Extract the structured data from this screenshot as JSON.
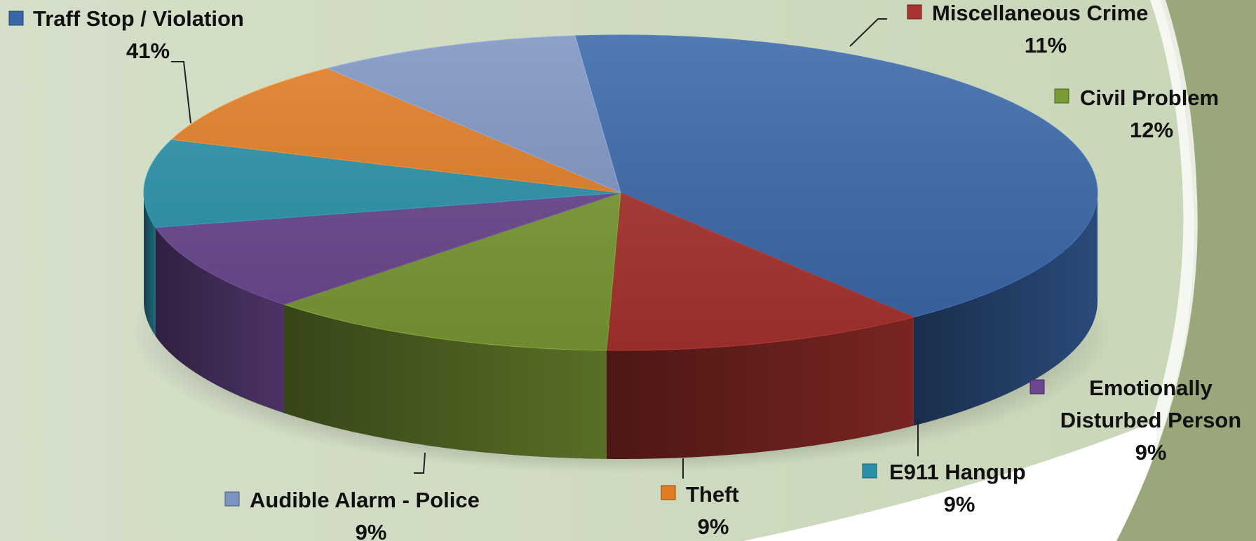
{
  "chart_data": {
    "type": "pie",
    "title": "",
    "slices": [
      {
        "name": "Traff Stop / Violation",
        "percent": "41%",
        "value": 41,
        "color": "#3a67a8"
      },
      {
        "name": "Miscellaneous Crime",
        "percent": "11%",
        "value": 11,
        "color": "#a8332f"
      },
      {
        "name": "Civil Problem",
        "percent": "12%",
        "value": 12,
        "color": "#7a9a35"
      },
      {
        "name": "Emotionally Disturbed Person",
        "percent": "9%",
        "value": 9,
        "color": "#6a478e"
      },
      {
        "name": "E911 Hangup",
        "percent": "9%",
        "value": 9,
        "color": "#2a91a8"
      },
      {
        "name": "Theft",
        "percent": "9%",
        "value": 9,
        "color": "#e07d24"
      },
      {
        "name": "Audible Alarm - Police",
        "percent": "9%",
        "value": 9,
        "color": "#7d94c2"
      }
    ],
    "style": "3d-exploded-none",
    "legend": "labels-outside-with-markers"
  },
  "labels": {
    "traff": {
      "name": "Traff Stop / Violation",
      "pct": "41%"
    },
    "misc": {
      "name": "Miscellaneous Crime",
      "pct": "11%"
    },
    "civil": {
      "name": "Civil Problem",
      "pct": "12%"
    },
    "edp": {
      "line1": "Emotionally",
      "line2": "Disturbed Person",
      "pct": "9%"
    },
    "e911": {
      "name": "E911 Hangup",
      "pct": "9%"
    },
    "theft": {
      "name": "Theft",
      "pct": "9%"
    },
    "alarm": {
      "name": "Audible Alarm - Police",
      "pct": "9%"
    }
  }
}
